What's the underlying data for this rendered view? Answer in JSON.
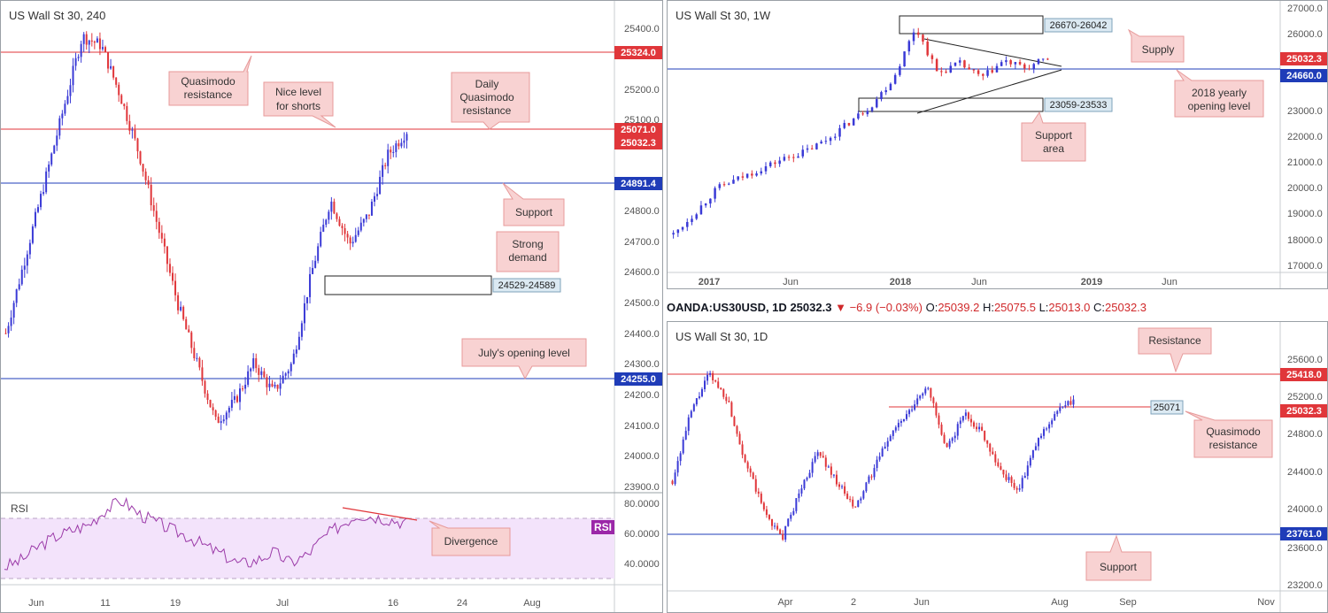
{
  "panel_4h": {
    "title": "US Wall St 30, 240",
    "y_ticks": [
      "25400.0",
      "25300.0",
      "25200.0",
      "25100.0",
      "25000.0",
      "24900.0",
      "24800.0",
      "24700.0",
      "24600.0",
      "24500.0",
      "24400.0",
      "24300.0",
      "24200.0",
      "24100.0",
      "24000.0",
      "23900.0"
    ],
    "x_ticks": [
      "Jun",
      "11",
      "19",
      "Jul",
      "16",
      "24",
      "Aug"
    ],
    "price_tags": {
      "t1": "25324.0",
      "t2": "25071.0",
      "t3": "25032.3",
      "t4": "24891.4",
      "t5": "24255.0"
    },
    "zone_label": "24529-24589",
    "callouts": {
      "c1a": "Quasimodo",
      "c1b": "resistance",
      "c2a": "Nice level",
      "c2b": "for shorts",
      "c3a": "Daily",
      "c3b": "Quasimodo",
      "c3c": "resistance",
      "c4": "Support",
      "c5a": "Strong",
      "c5b": "demand",
      "c6": "July's opening level",
      "c7": "Divergence"
    },
    "rsi": {
      "label": "RSI",
      "tag": "RSI",
      "ticks": [
        "80.0000",
        "60.0000",
        "40.0000"
      ]
    }
  },
  "panel_1w": {
    "title": "US Wall St 30, 1W",
    "y_ticks": [
      "27000.0",
      "26000.0",
      "25000.0",
      "24000.0",
      "23000.0",
      "22000.0",
      "21000.0",
      "20000.0",
      "19000.0",
      "18000.0",
      "17000.0"
    ],
    "x_ticks": [
      "2017",
      "Jun",
      "2018",
      "Jun",
      "2019",
      "Jun"
    ],
    "price_tags": {
      "t1": "25032.3",
      "t2": "24660.0"
    },
    "zones": {
      "supply": "26670-26042",
      "support": "23059-23533"
    },
    "callouts": {
      "c1": "Supply",
      "c2a": "2018 yearly",
      "c2b": "opening level",
      "c3a": "Support",
      "c3b": "area"
    }
  },
  "header_1d": {
    "symbol": "OANDA:US30USD, 1D",
    "price": "25032.3",
    "change": "−6.9 (−0.03%)",
    "o_label": "O:",
    "o": "25039.2",
    "h_label": "H:",
    "h": "25075.5",
    "l_label": "L:",
    "l": "25013.0",
    "c_label": "C:",
    "c": "25032.3"
  },
  "panel_1d": {
    "title": "US Wall St 30, 1D",
    "y_ticks": [
      "25600.0",
      "25200.0",
      "24800.0",
      "24400.0",
      "24000.0",
      "23600.0",
      "23200.0"
    ],
    "x_ticks": [
      "Apr",
      "2",
      "Jun",
      "Aug",
      "Sep",
      "Nov"
    ],
    "price_tags": {
      "t1": "25418.0",
      "t2": "25032.3",
      "t3": "23761.0"
    },
    "level_label": "25071",
    "callouts": {
      "c1": "Resistance",
      "c2a": "Quasimodo",
      "c2b": "resistance",
      "c3": "Support"
    }
  },
  "colors": {
    "bull": "#3a3ad6",
    "bear": "#e0363a",
    "resistance": "#e0363a",
    "support": "#1f3cb8",
    "callout_bg": "#f8d2d2",
    "callout_border": "#e79a9a",
    "rsi_fill": "#f3e3fb",
    "rsi_line": "#9b3aa8",
    "tag_green": "#dbe9f2"
  },
  "chart_data": [
    {
      "type": "candlestick",
      "timeframe": "240",
      "symbol": "US Wall St 30",
      "ylim": [
        23860,
        25440
      ],
      "horizontal_levels": [
        25324.0,
        25071.0,
        24891.4,
        24255.0
      ],
      "zones": [
        [
          24529,
          24589
        ]
      ],
      "last": 25032.3,
      "high": 25400,
      "low": 23975,
      "path": [
        24350,
        24600,
        24850,
        25100,
        25350,
        25320,
        25150,
        24950,
        24700,
        24450,
        24250,
        24050,
        24120,
        24250,
        24150,
        24250,
        24550,
        24800,
        24650,
        24750,
        24950,
        25032
      ]
    },
    {
      "type": "line",
      "name": "RSI",
      "ylim": [
        20,
        85
      ],
      "levels": [
        70,
        30
      ],
      "values": [
        33,
        38,
        48,
        55,
        60,
        64,
        75,
        82,
        72,
        66,
        60,
        55,
        48,
        42,
        35,
        38,
        44,
        36,
        42,
        55,
        64,
        72,
        70,
        68,
        65
      ]
    },
    {
      "type": "candlestick",
      "timeframe": "1W",
      "symbol": "US Wall St 30",
      "ylim": [
        16600,
        27100
      ],
      "horizontal_levels": [
        24660.0
      ],
      "zones": [
        [
          26042,
          26670
        ],
        [
          23059,
          23533
        ]
      ],
      "last": 25032.3,
      "high": 26670,
      "low": 17900,
      "path": [
        17900,
        18800,
        19800,
        20200,
        20600,
        21000,
        21300,
        21800,
        22500,
        23200,
        24300,
        26400,
        24500,
        24900,
        24300,
        25000,
        24700,
        25100
      ]
    },
    {
      "type": "candlestick",
      "timeframe": "1D",
      "symbol": "US Wall St 30",
      "ylim": [
        23100,
        25750
      ],
      "horizontal_levels": [
        25418.0,
        25071,
        23761.0
      ],
      "last": 25032.3,
      "high": 25600,
      "low": 23400,
      "path": [
        24200,
        24900,
        25300,
        25050,
        24400,
        23900,
        23600,
        24100,
        24500,
        24200,
        23900,
        24300,
        24700,
        24900,
        25200,
        24500,
        24900,
        24700,
        24300,
        24100,
        24600,
        24900,
        25032
      ]
    }
  ]
}
